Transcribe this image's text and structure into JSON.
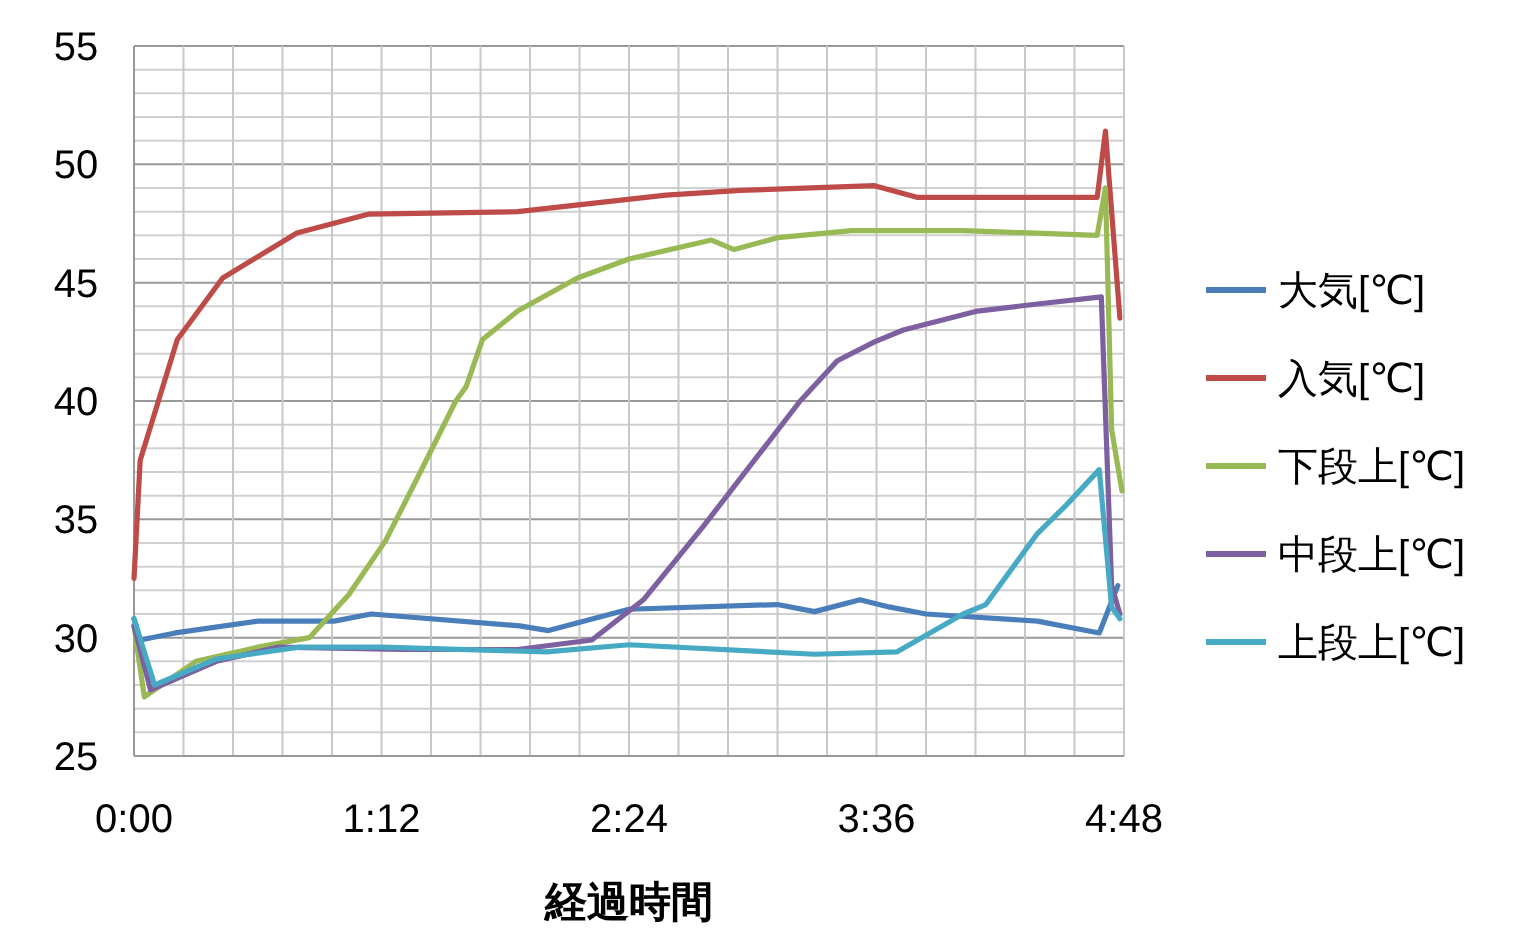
{
  "chart_data": {
    "type": "line",
    "xlabel": "経過時間",
    "xlim": [
      0,
      4.8
    ],
    "ylim": [
      25,
      55
    ],
    "grid": true,
    "legend": "right",
    "marker": "none",
    "line_style": "solid",
    "xticks": [
      {
        "value": 0,
        "label": "0:00"
      },
      {
        "value": 0.24,
        "label": null
      },
      {
        "value": 0.48,
        "label": null
      },
      {
        "value": 0.72,
        "label": null
      },
      {
        "value": 0.96,
        "label": null
      },
      {
        "value": 1.2,
        "label": "1:12"
      },
      {
        "value": 1.44,
        "label": null
      },
      {
        "value": 1.68,
        "label": null
      },
      {
        "value": 1.92,
        "label": null
      },
      {
        "value": 2.16,
        "label": null
      },
      {
        "value": 2.4,
        "label": "2:24"
      },
      {
        "value": 2.64,
        "label": null
      },
      {
        "value": 2.88,
        "label": null
      },
      {
        "value": 3.12,
        "label": null
      },
      {
        "value": 3.36,
        "label": null
      },
      {
        "value": 3.6,
        "label": "3:36"
      },
      {
        "value": 3.84,
        "label": null
      },
      {
        "value": 4.08,
        "label": null
      },
      {
        "value": 4.32,
        "label": null
      },
      {
        "value": 4.56,
        "label": null
      },
      {
        "value": 4.8,
        "label": "4:48"
      }
    ],
    "yticks": [
      25,
      {
        "value": 26,
        "label": null
      },
      {
        "value": 27,
        "label": null
      },
      {
        "value": 28,
        "label": null
      },
      {
        "value": 29,
        "label": null
      },
      30,
      {
        "value": 31,
        "label": null
      },
      {
        "value": 32,
        "label": null
      },
      {
        "value": 33,
        "label": null
      },
      {
        "value": 34,
        "label": null
      },
      35,
      {
        "value": 36,
        "label": null
      },
      {
        "value": 37,
        "label": null
      },
      {
        "value": 38,
        "label": null
      },
      {
        "value": 39,
        "label": null
      },
      40,
      {
        "value": 41,
        "label": null
      },
      {
        "value": 42,
        "label": null
      },
      {
        "value": 43,
        "label": null
      },
      {
        "value": 44,
        "label": null
      },
      45,
      {
        "value": 46,
        "label": null
      },
      {
        "value": 47,
        "label": null
      },
      {
        "value": 48,
        "label": null
      },
      {
        "value": 49,
        "label": null
      },
      50,
      {
        "value": 51,
        "label": null
      },
      {
        "value": 52,
        "label": null
      },
      {
        "value": 53,
        "label": null
      },
      {
        "value": 54,
        "label": null
      },
      55
    ],
    "series": [
      {
        "name": "大気[℃]",
        "color": "#4a7ebb",
        "x": [
          0,
          0.03,
          0.2,
          0.6,
          0.97,
          1.15,
          1.87,
          2.01,
          2.4,
          3.12,
          3.3,
          3.52,
          3.66,
          3.84,
          4.38,
          4.68,
          4.77
        ],
        "values": [
          30.8,
          29.9,
          30.2,
          30.7,
          30.7,
          31.0,
          30.5,
          30.3,
          31.2,
          31.4,
          31.1,
          31.6,
          31.3,
          31.0,
          30.7,
          30.2,
          32.2
        ]
      },
      {
        "name": "入気[℃]",
        "color": "#be4b48",
        "x": [
          0,
          0.03,
          0.21,
          0.43,
          0.79,
          1.14,
          1.86,
          2.58,
          2.94,
          3.59,
          3.8,
          4.67,
          4.71,
          4.78
        ],
        "values": [
          32.5,
          37.5,
          42.6,
          45.2,
          47.1,
          47.9,
          48.0,
          48.7,
          48.9,
          49.1,
          48.6,
          48.6,
          51.4,
          43.5
        ]
      },
      {
        "name": "下段上[℃]",
        "color": "#98b954",
        "x": [
          0,
          0.05,
          0.3,
          0.6,
          0.85,
          1.04,
          1.22,
          1.4,
          1.56,
          1.61,
          1.69,
          1.86,
          2.15,
          2.4,
          2.8,
          2.91,
          3.12,
          3.48,
          4.02,
          4.67,
          4.71,
          4.74,
          4.79
        ],
        "values": [
          30.5,
          27.5,
          29.0,
          29.6,
          30.0,
          31.8,
          34.1,
          37.2,
          40.0,
          40.6,
          42.6,
          43.8,
          45.2,
          46.0,
          46.8,
          46.4,
          46.9,
          47.2,
          47.2,
          47.0,
          49.0,
          38.8,
          36.2
        ]
      },
      {
        "name": "中段上[℃]",
        "color": "#7d60a0",
        "x": [
          0,
          0.08,
          0.4,
          0.7,
          1.3,
          1.86,
          2.22,
          2.47,
          2.76,
          3.23,
          3.41,
          3.59,
          3.73,
          4.09,
          4.38,
          4.69,
          4.74,
          4.78
        ],
        "values": [
          30.5,
          27.8,
          29.0,
          29.6,
          29.5,
          29.5,
          29.9,
          31.6,
          34.7,
          40.0,
          41.7,
          42.5,
          43.0,
          43.8,
          44.1,
          44.4,
          32.2,
          31.0
        ]
      },
      {
        "name": "上段上[℃]",
        "color": "#46aac5",
        "x": [
          0,
          0.1,
          0.4,
          0.8,
          1.2,
          2.0,
          2.4,
          3.3,
          3.7,
          3.8,
          4.02,
          4.13,
          4.38,
          4.52,
          4.68,
          4.74,
          4.78
        ],
        "values": [
          30.8,
          28.0,
          29.1,
          29.6,
          29.6,
          29.4,
          29.7,
          29.3,
          29.4,
          29.9,
          31.0,
          31.4,
          34.4,
          35.6,
          37.1,
          31.3,
          30.8
        ]
      }
    ]
  }
}
